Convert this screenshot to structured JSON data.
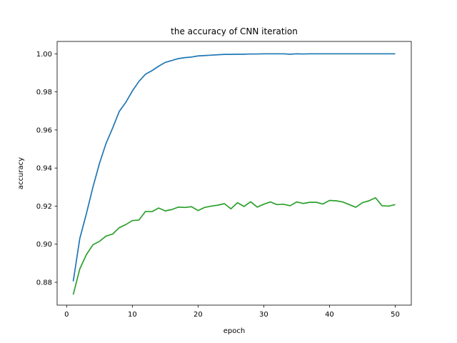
{
  "chart_data": {
    "type": "line",
    "title": "the accuracy of CNN iteration",
    "xlabel": "epoch",
    "ylabel": "accuracy",
    "xlim": [
      -1.45,
      52.45
    ],
    "ylim": [
      0.868,
      1.0065
    ],
    "xticks": [
      0,
      10,
      20,
      30,
      40,
      50
    ],
    "xtick_labels": [
      "0",
      "10",
      "20",
      "30",
      "40",
      "50"
    ],
    "yticks": [
      0.88,
      0.9,
      0.92,
      0.94,
      0.96,
      0.98,
      1.0
    ],
    "ytick_labels": [
      "0.88",
      "0.90",
      "0.92",
      "0.94",
      "0.96",
      "0.98",
      "1.00"
    ],
    "grid": false,
    "x": [
      1,
      2,
      3,
      4,
      5,
      6,
      7,
      8,
      9,
      10,
      11,
      12,
      13,
      14,
      15,
      16,
      17,
      18,
      19,
      20,
      21,
      22,
      23,
      24,
      25,
      26,
      27,
      28,
      29,
      30,
      31,
      32,
      33,
      34,
      35,
      36,
      37,
      38,
      39,
      40,
      41,
      42,
      43,
      44,
      45,
      46,
      47,
      48,
      49,
      50
    ],
    "series": [
      {
        "color": "#1f77b4",
        "values": [
          0.8805,
          0.903,
          0.916,
          0.93,
          0.9425,
          0.953,
          0.961,
          0.9697,
          0.9745,
          0.9805,
          0.9855,
          0.9893,
          0.9912,
          0.9935,
          0.9955,
          0.9965,
          0.9975,
          0.998,
          0.9983,
          0.9989,
          0.9991,
          0.9993,
          0.9995,
          0.9997,
          0.9997,
          0.9998,
          0.9998,
          0.9999,
          0.9999,
          1.0,
          1.0,
          1.0,
          1.0,
          0.9998,
          1.0,
          0.9999,
          1.0,
          1.0,
          1.0,
          1.0,
          1.0,
          1.0,
          1.0,
          1.0,
          1.0,
          1.0,
          1.0,
          1.0,
          1.0,
          1.0
        ]
      },
      {
        "color": "#2ca02c",
        "values": [
          0.8735,
          0.887,
          0.8945,
          0.8997,
          0.9015,
          0.9043,
          0.9053,
          0.9087,
          0.9103,
          0.9124,
          0.9127,
          0.9172,
          0.9171,
          0.919,
          0.9175,
          0.9182,
          0.9195,
          0.9193,
          0.9197,
          0.9177,
          0.9193,
          0.92,
          0.9205,
          0.9213,
          0.9186,
          0.9218,
          0.9198,
          0.9223,
          0.9195,
          0.921,
          0.9222,
          0.9208,
          0.921,
          0.9202,
          0.9222,
          0.9214,
          0.922,
          0.922,
          0.9211,
          0.923,
          0.9228,
          0.9222,
          0.9208,
          0.9194,
          0.9218,
          0.9228,
          0.9244,
          0.9202,
          0.92,
          0.9208
        ]
      }
    ]
  }
}
